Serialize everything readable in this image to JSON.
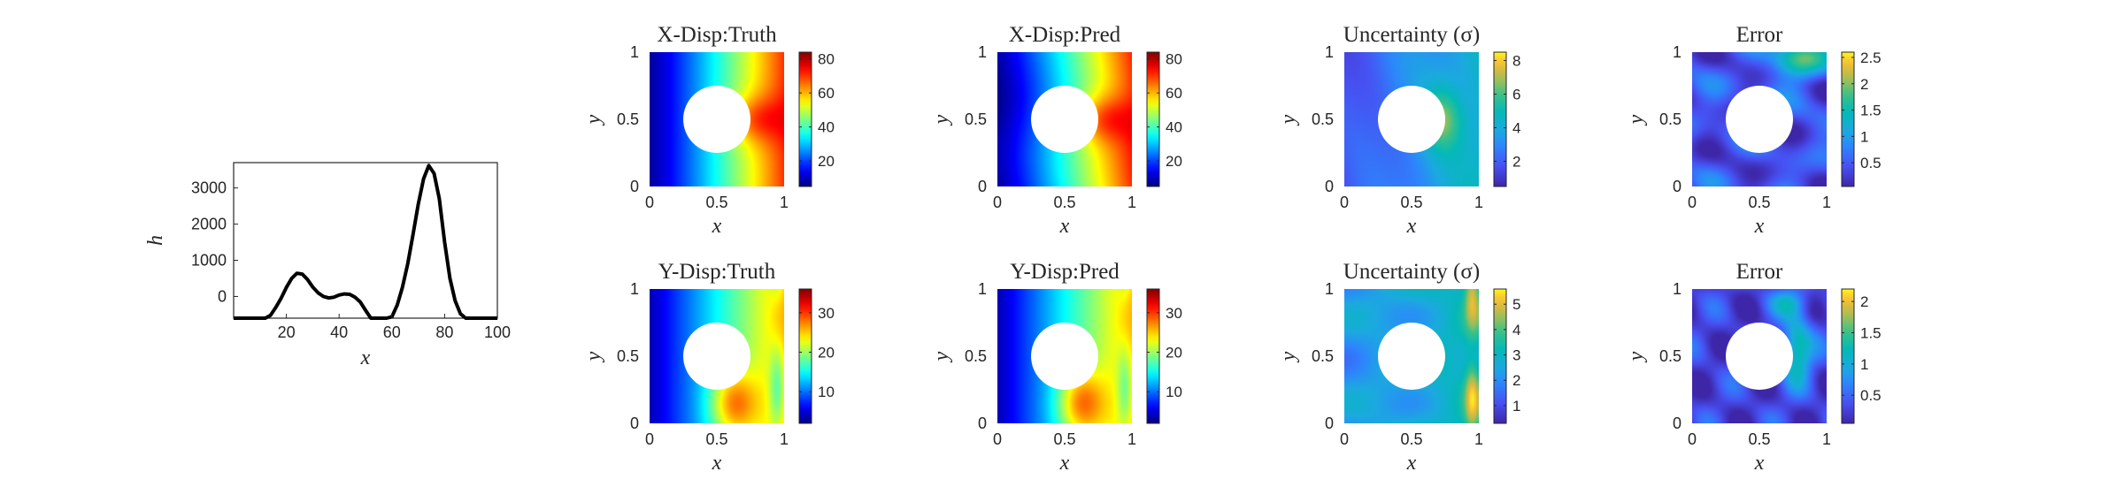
{
  "line_plot": {
    "xlabel": "x",
    "ylabel": "h",
    "xticks": [
      "20",
      "40",
      "60",
      "80",
      "100"
    ],
    "yticks": [
      "0",
      "1000",
      "2000",
      "3000"
    ]
  },
  "fields": [
    {
      "id": "xdisp-truth",
      "title": "X-Disp:Truth",
      "colormap": "jet",
      "cbar_ticks": [
        "20",
        "40",
        "60",
        "80"
      ],
      "cbar_range": [
        5,
        84
      ]
    },
    {
      "id": "xdisp-pred",
      "title": "X-Disp:Pred",
      "colormap": "jet",
      "cbar_ticks": [
        "20",
        "40",
        "60",
        "80"
      ],
      "cbar_range": [
        5,
        84
      ]
    },
    {
      "id": "xdisp-uncertainty",
      "title": "Uncertainty (σ)",
      "colormap": "parula",
      "cbar_ticks": [
        "2",
        "4",
        "6",
        "8"
      ],
      "cbar_range": [
        0.5,
        8.5
      ]
    },
    {
      "id": "xdisp-error",
      "title": "Error",
      "colormap": "parula",
      "cbar_ticks": [
        "0.5",
        "1",
        "1.5",
        "2",
        "2.5"
      ],
      "cbar_range": [
        0.05,
        2.6
      ]
    },
    {
      "id": "ydisp-truth",
      "title": "Y-Disp:Truth",
      "colormap": "jet",
      "cbar_ticks": [
        "10",
        "20",
        "30"
      ],
      "cbar_range": [
        2,
        36
      ]
    },
    {
      "id": "ydisp-pred",
      "title": "Y-Disp:Pred",
      "colormap": "jet",
      "cbar_ticks": [
        "10",
        "20",
        "30"
      ],
      "cbar_range": [
        2,
        36
      ]
    },
    {
      "id": "ydisp-uncertainty",
      "title": "Uncertainty (σ)",
      "colormap": "parula",
      "cbar_ticks": [
        "1",
        "2",
        "3",
        "4",
        "5"
      ],
      "cbar_range": [
        0.3,
        5.6
      ]
    },
    {
      "id": "ydisp-error",
      "title": "Error",
      "colormap": "parula",
      "cbar_ticks": [
        "0.5",
        "1",
        "1.5",
        "2"
      ],
      "cbar_range": [
        0.05,
        2.2
      ]
    }
  ],
  "field_axes": {
    "xlabel": "x",
    "ylabel": "y",
    "xticks": [
      "0",
      "0.5",
      "1"
    ],
    "yticks": [
      "0",
      "0.5",
      "1"
    ]
  },
  "chart_data": [
    {
      "type": "line",
      "title": "",
      "xlabel": "x",
      "ylabel": "h",
      "xlim": [
        0,
        100
      ],
      "ylim": [
        -600,
        3700
      ],
      "grid": false,
      "series": [
        {
          "x": [
            0,
            4,
            8,
            10,
            12,
            14,
            16,
            18,
            20,
            22,
            24,
            26,
            28,
            30,
            32,
            34,
            36,
            38,
            40,
            42,
            44,
            46,
            48,
            50,
            52,
            54,
            56,
            58,
            60,
            62,
            64,
            66,
            68,
            70,
            72,
            74,
            76,
            78,
            80,
            82,
            84,
            86,
            88,
            90,
            92,
            94,
            96,
            98,
            100
          ],
          "values": [
            -800,
            -800,
            -790,
            -760,
            -680,
            -520,
            -300,
            -50,
            250,
            500,
            640,
            620,
            470,
            260,
            100,
            0,
            -40,
            -20,
            40,
            70,
            60,
            -20,
            -150,
            -380,
            -600,
            -730,
            -790,
            -740,
            -560,
            -240,
            250,
            900,
            1700,
            2550,
            3250,
            3620,
            3400,
            2700,
            1500,
            500,
            -120,
            -480,
            -680,
            -780,
            -800,
            -800,
            -780,
            -760,
            -760
          ]
        }
      ]
    },
    {
      "type": "heatmap",
      "title": "X-Disp:Truth",
      "xlabel": "x",
      "ylabel": "y",
      "xlim": [
        0,
        1
      ],
      "ylim": [
        0,
        1
      ],
      "colorbar_range": [
        5,
        84
      ],
      "colorbar_ticks": [
        20,
        40,
        60,
        80
      ],
      "hole": {
        "center": [
          0.5,
          0.5
        ],
        "radius": 0.25
      }
    },
    {
      "type": "heatmap",
      "title": "X-Disp:Pred",
      "xlabel": "x",
      "ylabel": "y",
      "xlim": [
        0,
        1
      ],
      "ylim": [
        0,
        1
      ],
      "colorbar_range": [
        5,
        84
      ],
      "colorbar_ticks": [
        20,
        40,
        60,
        80
      ],
      "hole": {
        "center": [
          0.5,
          0.5
        ],
        "radius": 0.25
      }
    },
    {
      "type": "heatmap",
      "title": "Uncertainty (σ)",
      "xlabel": "x",
      "ylabel": "y",
      "xlim": [
        0,
        1
      ],
      "ylim": [
        0,
        1
      ],
      "colorbar_range": [
        0.5,
        8.5
      ],
      "colorbar_ticks": [
        2,
        4,
        6,
        8
      ],
      "hole": {
        "center": [
          0.5,
          0.5
        ],
        "radius": 0.25
      }
    },
    {
      "type": "heatmap",
      "title": "Error",
      "xlabel": "x",
      "ylabel": "y",
      "xlim": [
        0,
        1
      ],
      "ylim": [
        0,
        1
      ],
      "colorbar_range": [
        0.05,
        2.6
      ],
      "colorbar_ticks": [
        0.5,
        1,
        1.5,
        2,
        2.5
      ],
      "hole": {
        "center": [
          0.5,
          0.5
        ],
        "radius": 0.25
      }
    },
    {
      "type": "heatmap",
      "title": "Y-Disp:Truth",
      "xlabel": "x",
      "ylabel": "y",
      "xlim": [
        0,
        1
      ],
      "ylim": [
        0,
        1
      ],
      "colorbar_range": [
        2,
        36
      ],
      "colorbar_ticks": [
        10,
        20,
        30
      ],
      "hole": {
        "center": [
          0.5,
          0.5
        ],
        "radius": 0.25
      }
    },
    {
      "type": "heatmap",
      "title": "Y-Disp:Pred",
      "xlabel": "x",
      "ylabel": "y",
      "xlim": [
        0,
        1
      ],
      "ylim": [
        0,
        1
      ],
      "colorbar_range": [
        2,
        36
      ],
      "colorbar_ticks": [
        10,
        20,
        30
      ],
      "hole": {
        "center": [
          0.5,
          0.5
        ],
        "radius": 0.25
      }
    },
    {
      "type": "heatmap",
      "title": "Uncertainty (σ)",
      "xlabel": "x",
      "ylabel": "y",
      "xlim": [
        0,
        1
      ],
      "ylim": [
        0,
        1
      ],
      "colorbar_range": [
        0.3,
        5.6
      ],
      "colorbar_ticks": [
        1,
        2,
        3,
        4,
        5
      ],
      "hole": {
        "center": [
          0.5,
          0.5
        ],
        "radius": 0.25
      }
    },
    {
      "type": "heatmap",
      "title": "Error",
      "xlabel": "x",
      "ylabel": "y",
      "xlim": [
        0,
        1
      ],
      "ylim": [
        0,
        1
      ],
      "colorbar_range": [
        0.05,
        2.2
      ],
      "colorbar_ticks": [
        0.5,
        1,
        1.5,
        2
      ],
      "hole": {
        "center": [
          0.5,
          0.5
        ],
        "radius": 0.25
      }
    }
  ]
}
